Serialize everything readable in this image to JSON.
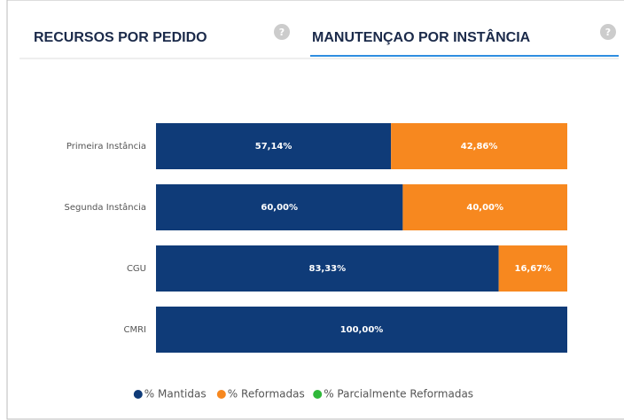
{
  "tabs": [
    "RECURSOS POR PEDIDO",
    "MANUTENÇAO POR INSTÂNCIA"
  ],
  "active_tab": 1,
  "chart_data": {
    "type": "stacked-bar-horizontal",
    "categories": [
      "Primeira Instância",
      "Segunda Instância",
      "CGU",
      "CMRI"
    ],
    "xlim": [
      0,
      100
    ],
    "legend": "bottom",
    "series": [
      {
        "name": "% Mantidas",
        "color": "#0f3b78",
        "values": [
          57.14,
          60,
          83.33,
          100
        ],
        "value_labels": [
          "57,14%",
          "60,00%",
          "83,33%",
          "100,00%"
        ]
      },
      {
        "name": "% Reformadas",
        "color": "#f7881f",
        "values": [
          42.86,
          40,
          16.67,
          0
        ],
        "value_labels": [
          "42,86%",
          "40,00%",
          "16,67%",
          null
        ]
      },
      {
        "name": "% Parcialmente Reformadas",
        "color": "#2fb83a",
        "values": [
          0,
          0,
          0,
          0
        ],
        "value_labels": [
          null,
          null,
          null,
          null
        ]
      }
    ]
  }
}
